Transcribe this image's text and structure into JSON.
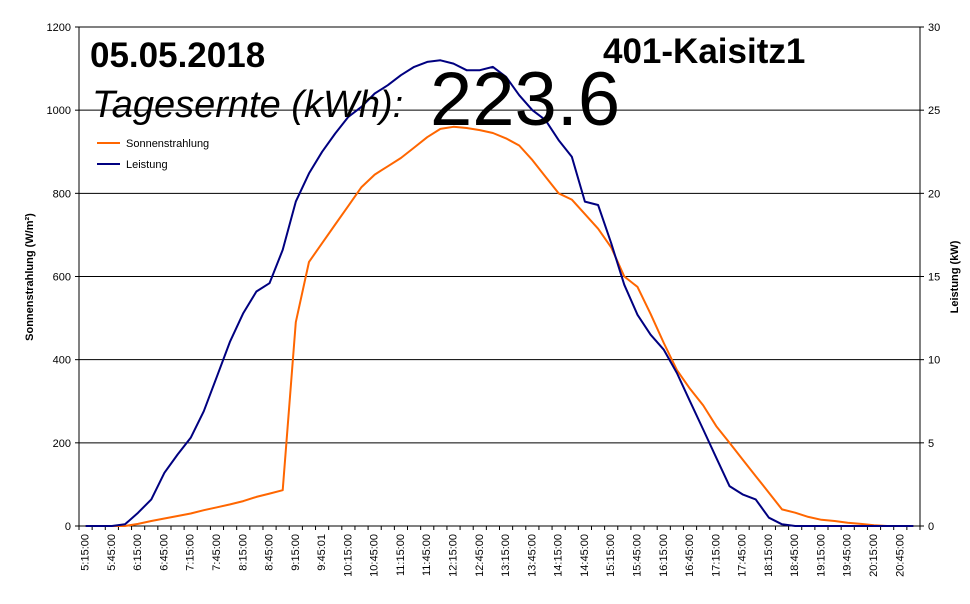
{
  "header": {
    "date": "05.05.2018",
    "site": "401-Kaisitz1",
    "harvest_label": "Tagesernte (kWh):",
    "harvest_value": "223.6"
  },
  "chart_data": {
    "type": "line",
    "title": "",
    "ylabel": "Sonnenstrahlung (W/m²)",
    "ylabel_right": "Leistung (kW)",
    "ylim": [
      0,
      1200
    ],
    "yticks": [
      0,
      200,
      400,
      600,
      800,
      1000,
      1200
    ],
    "ylim_right": [
      0,
      30
    ],
    "yticks_right": [
      0,
      5,
      10,
      15,
      20,
      25,
      30
    ],
    "grid": true,
    "legend": "top-left",
    "x_tick_labels": [
      "5:15:00",
      "5:45:00",
      "6:15:00",
      "6:45:00",
      "7:15:00",
      "7:45:00",
      "8:15:00",
      "8:45:00",
      "9:15:00",
      "9:45:01",
      "10:15:00",
      "10:45:00",
      "11:15:00",
      "11:45:00",
      "12:15:00",
      "12:45:00",
      "13:15:00",
      "13:45:00",
      "14:15:00",
      "14:45:00",
      "15:15:00",
      "15:45:00",
      "16:15:00",
      "16:45:00",
      "17:15:00",
      "17:45:00",
      "18:15:00",
      "18:45:00",
      "19:15:00",
      "19:45:00",
      "20:15:00",
      "20:45:00"
    ],
    "x": [
      "5:15",
      "5:30",
      "5:45",
      "6:00",
      "6:15",
      "6:30",
      "6:45",
      "7:00",
      "7:15",
      "7:30",
      "7:45",
      "8:00",
      "8:15",
      "8:30",
      "8:45",
      "9:00",
      "9:15",
      "9:30",
      "9:45",
      "10:00",
      "10:15",
      "10:30",
      "10:45",
      "11:00",
      "11:15",
      "11:30",
      "11:45",
      "12:00",
      "12:15",
      "12:30",
      "12:45",
      "13:00",
      "13:15",
      "13:30",
      "13:45",
      "14:00",
      "14:15",
      "14:30",
      "14:45",
      "15:00",
      "15:15",
      "15:30",
      "15:45",
      "16:00",
      "16:15",
      "16:30",
      "16:45",
      "17:00",
      "17:15",
      "17:30",
      "17:45",
      "18:00",
      "18:15",
      "18:30",
      "18:45",
      "19:00",
      "19:15",
      "19:30",
      "19:45",
      "20:00",
      "20:15",
      "20:30",
      "20:45",
      "21:00"
    ],
    "series": [
      {
        "name": "Sonnenstrahlung",
        "color": "#ff6600",
        "axis": "left",
        "values": [
          0,
          0,
          0,
          0,
          5,
          12,
          18,
          24,
          30,
          38,
          45,
          52,
          60,
          70,
          78,
          86,
          490,
          635,
          680,
          725,
          770,
          815,
          845,
          865,
          885,
          910,
          935,
          955,
          960,
          957,
          952,
          945,
          932,
          915,
          880,
          840,
          800,
          785,
          750,
          715,
          670,
          600,
          575,
          510,
          440,
          375,
          330,
          290,
          240,
          200,
          160,
          120,
          80,
          40,
          32,
          22,
          15,
          12,
          8,
          5,
          2,
          0,
          0,
          0
        ]
      },
      {
        "name": "Leistung",
        "color": "#000080",
        "axis": "right",
        "values": [
          0,
          0,
          0,
          0.1,
          0.8,
          1.6,
          3.2,
          4.3,
          5.3,
          6.9,
          9.0,
          11.1,
          12.8,
          14.1,
          14.6,
          16.6,
          19.5,
          21.2,
          22.5,
          23.6,
          24.6,
          25.2,
          26.0,
          26.5,
          27.1,
          27.6,
          27.9,
          28.0,
          27.8,
          27.4,
          27.4,
          27.6,
          27.0,
          25.9,
          25.0,
          24.4,
          23.2,
          22.2,
          19.5,
          19.3,
          17.0,
          14.5,
          12.7,
          11.5,
          10.6,
          9.2,
          7.5,
          5.8,
          4.1,
          2.4,
          1.9,
          1.6,
          0.5,
          0.1,
          0,
          0,
          0,
          0,
          0,
          0,
          0,
          0,
          0,
          0
        ]
      }
    ]
  }
}
